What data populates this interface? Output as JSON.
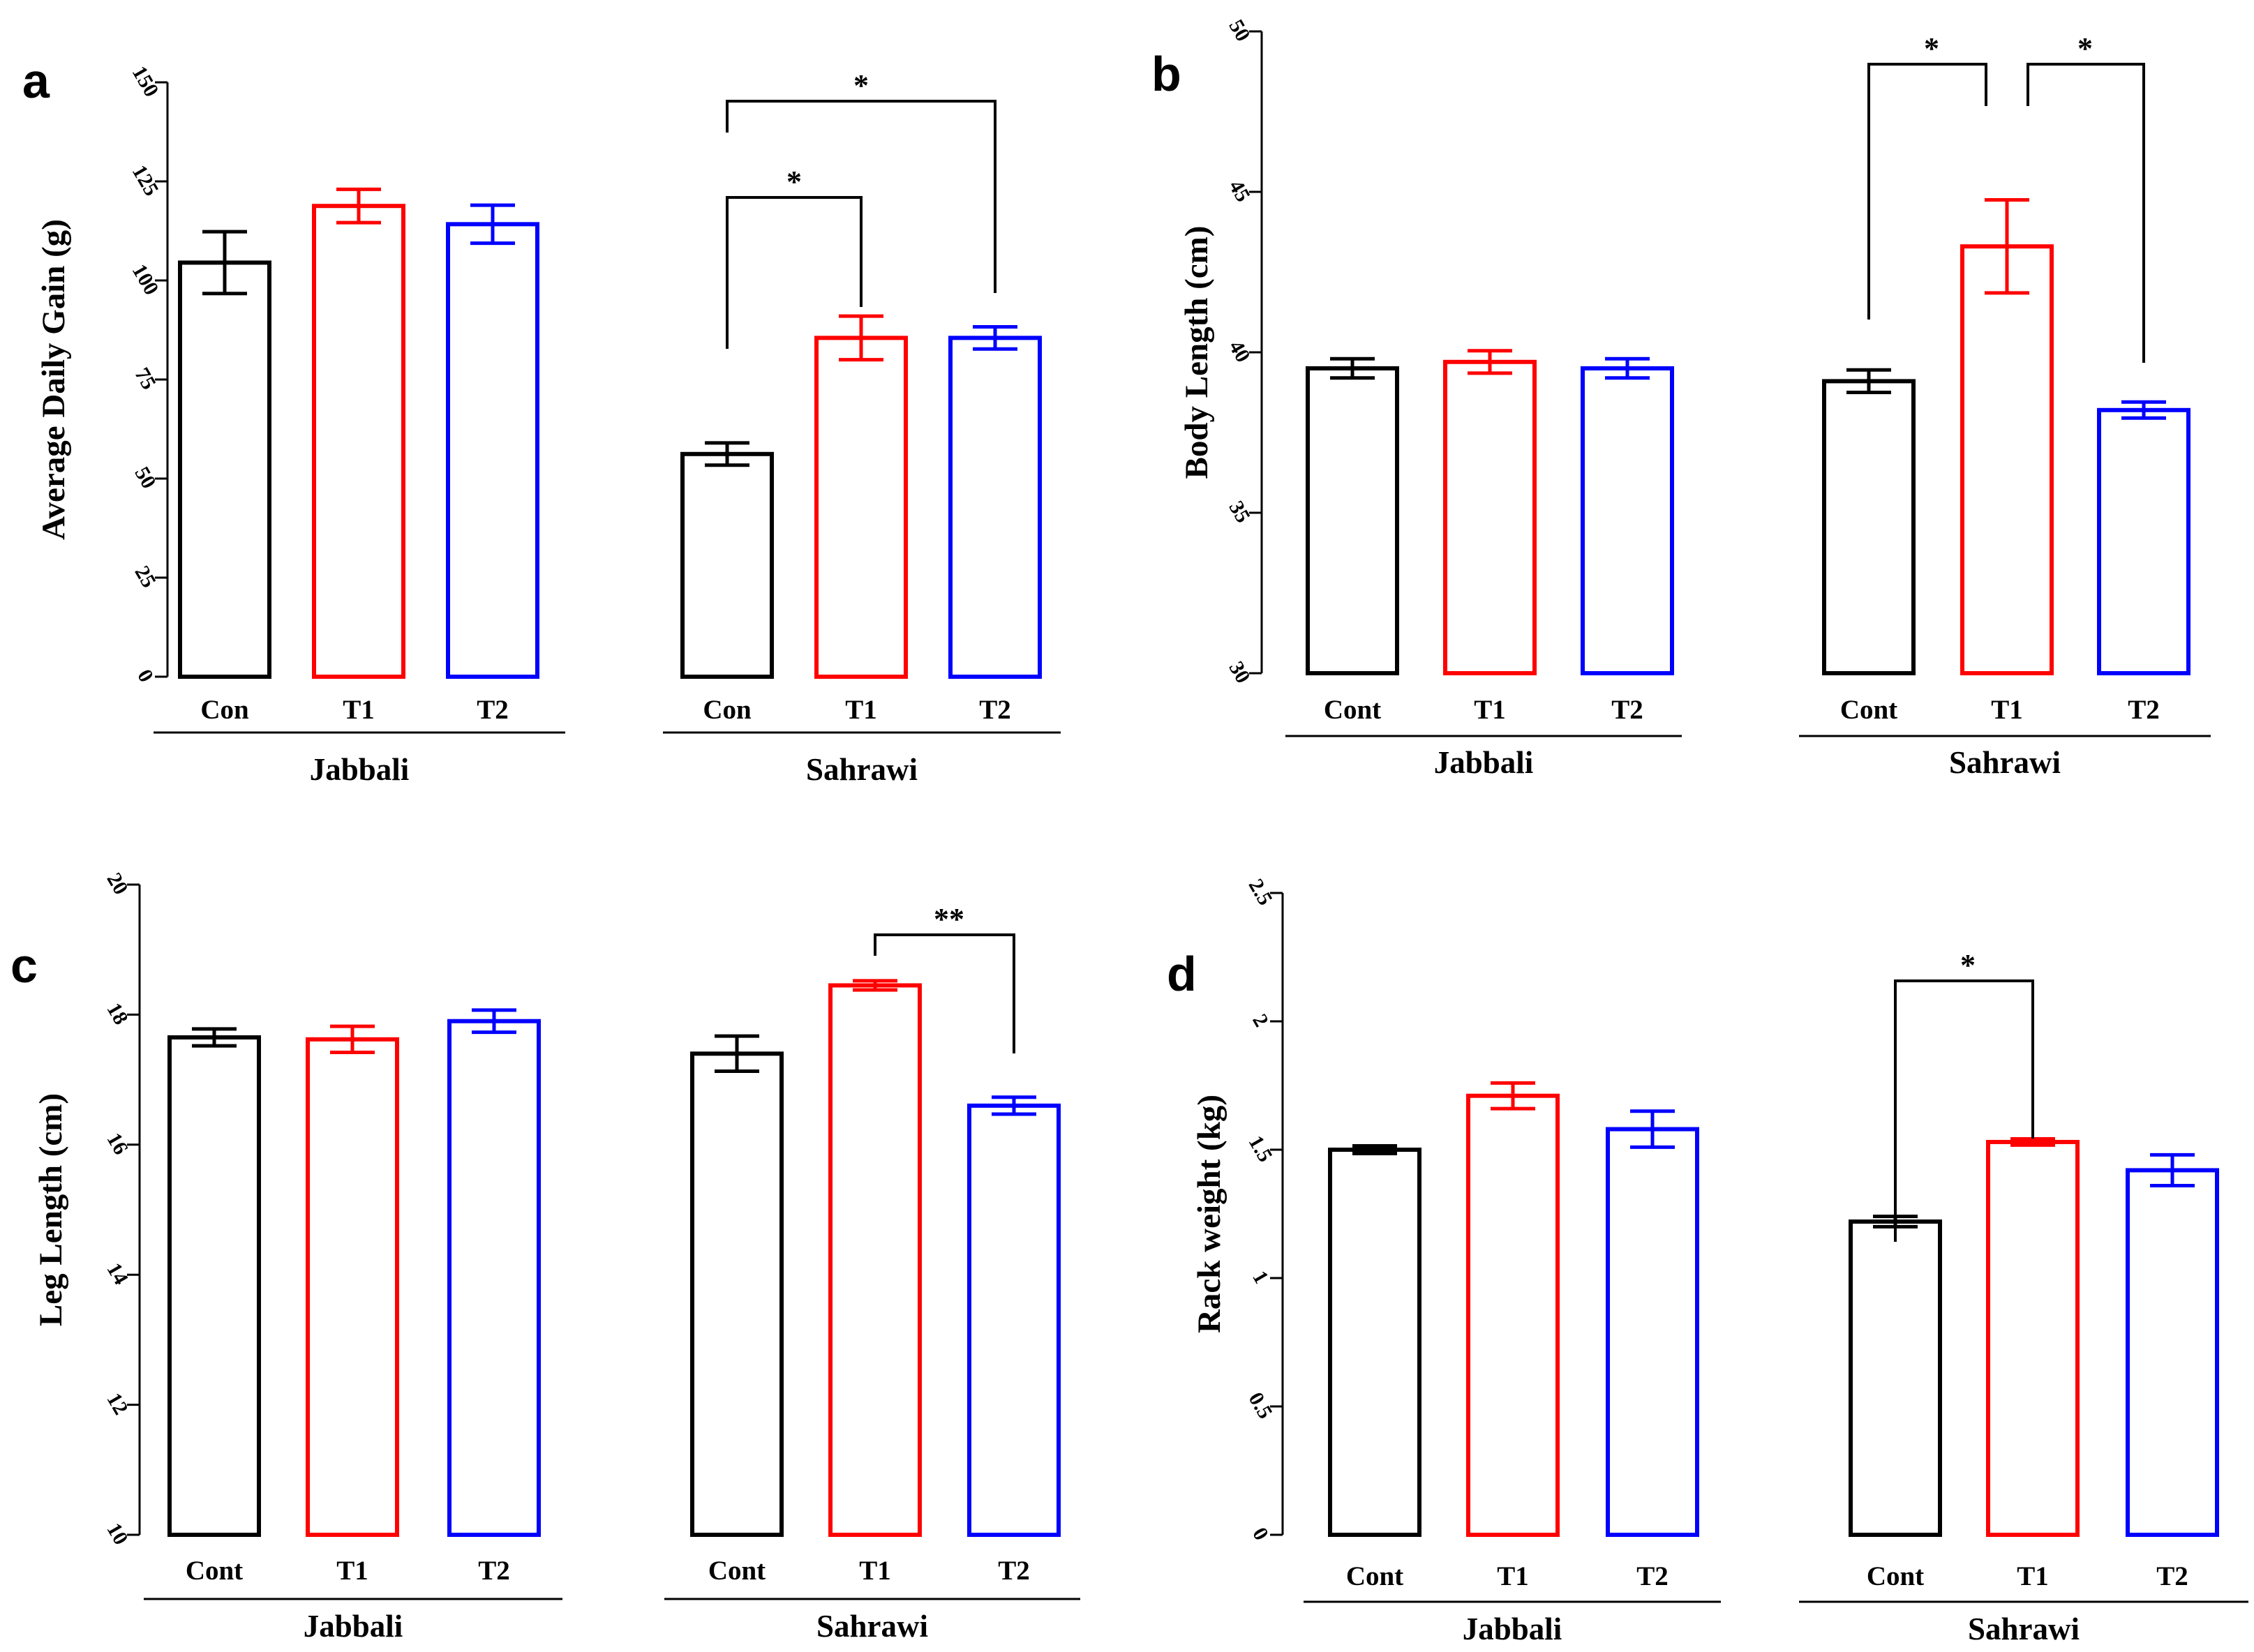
{
  "colors": {
    "Con": "#000000",
    "Cont": "#000000",
    "T1": "#ff0000",
    "T2": "#0000ff",
    "axis": "#000000"
  },
  "chart_data": [
    {
      "panel": "a",
      "type": "bar",
      "ylabel": "Average Daily Gain (g)",
      "ylim": [
        0,
        150
      ],
      "yticks": [
        "0",
        "25",
        "50",
        "75",
        "100",
        "125",
        "150"
      ],
      "groups": [
        {
          "name": "Jabbali",
          "categories": [
            "Con",
            "T1",
            "T2"
          ],
          "values": [
            104.5,
            118.8,
            114.2
          ],
          "errors": [
            7.8,
            4.2,
            4.8
          ]
        },
        {
          "name": "Sahrawi",
          "categories": [
            "Con",
            "T1",
            "T2"
          ],
          "values": [
            56.2,
            85.5,
            85.5
          ],
          "errors": [
            2.8,
            5.5,
            2.8
          ]
        }
      ],
      "significance": [
        {
          "group": "Sahrawi",
          "from": "Con",
          "to": "T1",
          "label": "*"
        },
        {
          "group": "Sahrawi",
          "from": "Con",
          "to": "T2",
          "label": "*"
        }
      ]
    },
    {
      "panel": "b",
      "type": "bar",
      "ylabel": "Body Length (cm)",
      "ylim": [
        30,
        50
      ],
      "yticks": [
        "30",
        "35",
        "40",
        "45",
        "50"
      ],
      "groups": [
        {
          "name": "Jabbali",
          "categories": [
            "Cont",
            "T1",
            "T2"
          ],
          "values": [
            39.5,
            39.7,
            39.5
          ],
          "errors": [
            0.3,
            0.35,
            0.3
          ]
        },
        {
          "name": "Sahrawi",
          "categories": [
            "Cont",
            "T1",
            "T2"
          ],
          "values": [
            39.1,
            43.3,
            38.2
          ],
          "errors": [
            0.35,
            1.45,
            0.25
          ]
        }
      ],
      "significance": [
        {
          "group": "Sahrawi",
          "from": "Cont",
          "to": "T1",
          "label": "*"
        },
        {
          "group": "Sahrawi",
          "from": "T1",
          "to": "T2",
          "label": "*"
        }
      ]
    },
    {
      "panel": "c",
      "type": "bar",
      "ylabel": "Leg Length (cm)",
      "ylim": [
        10,
        20
      ],
      "yticks": [
        "10",
        "12",
        "14",
        "16",
        "18",
        "20"
      ],
      "groups": [
        {
          "name": "Jabbali",
          "categories": [
            "Cont",
            "T1",
            "T2"
          ],
          "values": [
            17.65,
            17.62,
            17.9
          ],
          "errors": [
            0.13,
            0.2,
            0.17
          ]
        },
        {
          "name": "Sahrawi",
          "categories": [
            "Cont",
            "T1",
            "T2"
          ],
          "values": [
            17.4,
            18.45,
            16.6
          ],
          "errors": [
            0.27,
            0.07,
            0.13
          ]
        }
      ],
      "significance": [
        {
          "group": "Sahrawi",
          "from": "T1",
          "to": "T2",
          "label": "**"
        }
      ]
    },
    {
      "panel": "d",
      "type": "bar",
      "ylabel": "Rack weight (kg)",
      "ylim": [
        0,
        2.5
      ],
      "yticks": [
        "0",
        "0.5",
        "1",
        "1.5",
        "2",
        "2.5"
      ],
      "groups": [
        {
          "name": "Jabbali",
          "categories": [
            "Cont",
            "T1",
            "T2"
          ],
          "values": [
            1.5,
            1.71,
            1.58
          ],
          "errors": [
            0.015,
            0.05,
            0.07
          ]
        },
        {
          "name": "Sahrawi",
          "categories": [
            "Cont",
            "T1",
            "T2"
          ],
          "values": [
            1.22,
            1.53,
            1.42
          ],
          "errors": [
            0.02,
            0.012,
            0.06
          ]
        }
      ],
      "significance": [
        {
          "group": "Sahrawi",
          "from": "Cont",
          "to": "T1",
          "label": "*"
        }
      ]
    }
  ]
}
